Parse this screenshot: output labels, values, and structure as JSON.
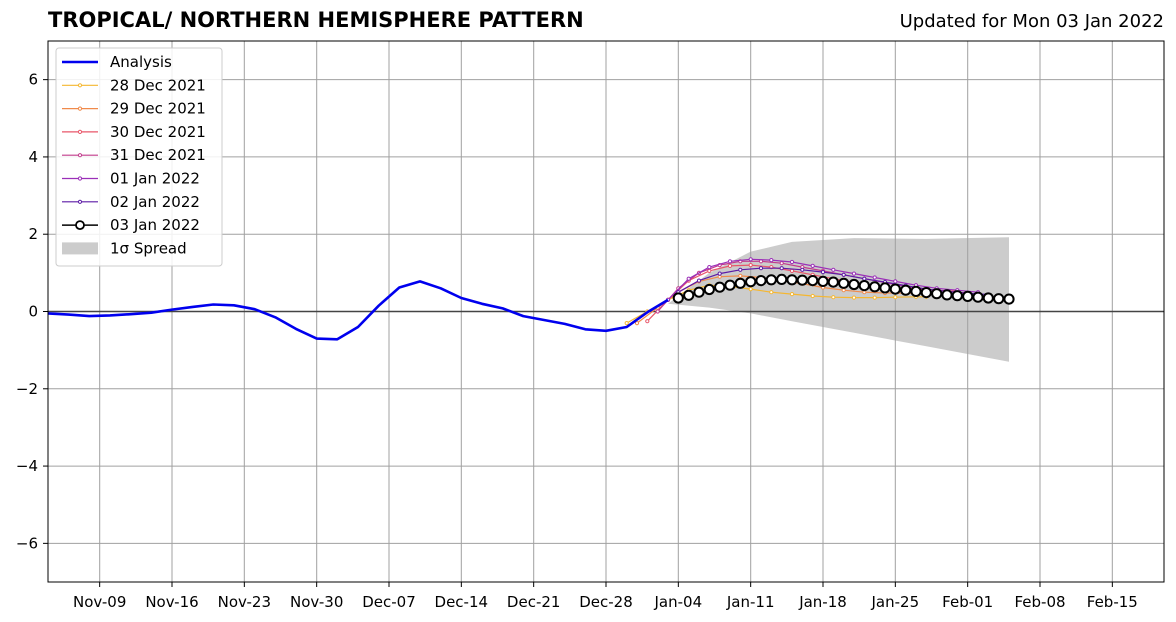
{
  "header": {
    "title": "TROPICAL/ NORTHERN HEMISPHERE PATTERN",
    "updated": "Updated for Mon 03 Jan 2022"
  },
  "chart_data": {
    "type": "line",
    "title": "TROPICAL/ NORTHERN HEMISPHERE PATTERN",
    "subtitle": "Updated for Mon 03 Jan 2022",
    "xlabel": "",
    "ylabel": "",
    "x_range": [
      "2021-11-04",
      "2022-02-20"
    ],
    "ylim": [
      -7,
      7
    ],
    "y_ticks": [
      -6,
      -4,
      -2,
      0,
      2,
      4,
      6
    ],
    "y_tick_labels": [
      "−6",
      "−4",
      "−2",
      "0",
      "2",
      "4",
      "6"
    ],
    "x_ticks": [
      "2021-11-09",
      "2021-11-16",
      "2021-11-23",
      "2021-11-30",
      "2021-12-07",
      "2021-12-14",
      "2021-12-21",
      "2021-12-28",
      "2022-01-04",
      "2022-01-11",
      "2022-01-18",
      "2022-01-25",
      "2022-02-01",
      "2022-02-08",
      "2022-02-15"
    ],
    "x_tick_labels": [
      "Nov-09",
      "Nov-16",
      "Nov-23",
      "Nov-30",
      "Dec-07",
      "Dec-14",
      "Dec-21",
      "Dec-28",
      "Jan-04",
      "Jan-11",
      "Jan-18",
      "Jan-25",
      "Feb-01",
      "Feb-08",
      "Feb-15"
    ],
    "grid": true,
    "legend_position": "top-left",
    "zero_line": 0,
    "analysis": {
      "name": "Analysis",
      "color": "#0000ee",
      "points": [
        [
          "2021-11-04",
          -0.05
        ],
        [
          "2021-11-06",
          -0.08
        ],
        [
          "2021-11-08",
          -0.12
        ],
        [
          "2021-11-10",
          -0.1
        ],
        [
          "2021-11-12",
          -0.07
        ],
        [
          "2021-11-14",
          -0.03
        ],
        [
          "2021-11-16",
          0.05
        ],
        [
          "2021-11-18",
          0.12
        ],
        [
          "2021-11-20",
          0.18
        ],
        [
          "2021-11-22",
          0.16
        ],
        [
          "2021-11-24",
          0.06
        ],
        [
          "2021-11-26",
          -0.15
        ],
        [
          "2021-11-28",
          -0.45
        ],
        [
          "2021-11-30",
          -0.7
        ],
        [
          "2021-12-02",
          -0.72
        ],
        [
          "2021-12-04",
          -0.4
        ],
        [
          "2021-12-06",
          0.15
        ],
        [
          "2021-12-08",
          0.62
        ],
        [
          "2021-12-10",
          0.78
        ],
        [
          "2021-12-12",
          0.6
        ],
        [
          "2021-12-14",
          0.35
        ],
        [
          "2021-12-16",
          0.2
        ],
        [
          "2021-12-18",
          0.08
        ],
        [
          "2021-12-20",
          -0.12
        ],
        [
          "2021-12-22",
          -0.22
        ],
        [
          "2021-12-24",
          -0.32
        ],
        [
          "2021-12-26",
          -0.46
        ],
        [
          "2021-12-28",
          -0.5
        ],
        [
          "2021-12-30",
          -0.4
        ],
        [
          "2022-01-01",
          -0.02
        ],
        [
          "2022-01-03",
          0.3
        ]
      ]
    },
    "spread": {
      "name": "1σ Spread",
      "color": "#cccccc",
      "upper": [
        [
          "2022-01-03",
          0.2
        ],
        [
          "2022-01-07",
          1.0
        ],
        [
          "2022-01-11",
          1.55
        ],
        [
          "2022-01-15",
          1.8
        ],
        [
          "2022-01-21",
          1.9
        ],
        [
          "2022-01-28",
          1.88
        ],
        [
          "2022-02-05",
          1.92
        ]
      ],
      "lower": [
        [
          "2022-01-03",
          0.2
        ],
        [
          "2022-01-07",
          0.1
        ],
        [
          "2022-01-11",
          -0.05
        ],
        [
          "2022-01-15",
          -0.25
        ],
        [
          "2022-01-21",
          -0.55
        ],
        [
          "2022-01-28",
          -0.9
        ],
        [
          "2022-02-05",
          -1.3
        ]
      ]
    },
    "series": [
      {
        "name": "28 Dec 2021",
        "color": "#f5b731",
        "marker": "dot",
        "values": [
          [
            "2021-12-30",
            -0.3
          ],
          [
            "2022-01-01",
            0.0
          ],
          [
            "2022-01-03",
            0.3
          ],
          [
            "2022-01-05",
            0.55
          ],
          [
            "2022-01-07",
            0.68
          ],
          [
            "2022-01-09",
            0.65
          ],
          [
            "2022-01-11",
            0.58
          ],
          [
            "2022-01-13",
            0.5
          ],
          [
            "2022-01-15",
            0.45
          ],
          [
            "2022-01-17",
            0.4
          ],
          [
            "2022-01-19",
            0.37
          ],
          [
            "2022-01-21",
            0.36
          ],
          [
            "2022-01-23",
            0.36
          ],
          [
            "2022-01-25",
            0.37
          ],
          [
            "2022-01-27",
            0.38
          ],
          [
            "2022-01-28",
            0.38
          ]
        ]
      },
      {
        "name": "29 Dec 2021",
        "color": "#f08a4b",
        "marker": "dot",
        "values": [
          [
            "2021-12-31",
            -0.3
          ],
          [
            "2022-01-02",
            0.1
          ],
          [
            "2022-01-04",
            0.5
          ],
          [
            "2022-01-06",
            0.78
          ],
          [
            "2022-01-08",
            0.9
          ],
          [
            "2022-01-10",
            0.92
          ],
          [
            "2022-01-12",
            0.88
          ],
          [
            "2022-01-14",
            0.8
          ],
          [
            "2022-01-16",
            0.72
          ],
          [
            "2022-01-18",
            0.62
          ],
          [
            "2022-01-20",
            0.55
          ],
          [
            "2022-01-22",
            0.5
          ],
          [
            "2022-01-24",
            0.48
          ],
          [
            "2022-01-26",
            0.47
          ],
          [
            "2022-01-28",
            0.48
          ],
          [
            "2022-01-29",
            0.48
          ]
        ]
      },
      {
        "name": "30 Dec 2021",
        "color": "#e8576a",
        "marker": "dot",
        "values": [
          [
            "2022-01-01",
            -0.25
          ],
          [
            "2022-01-03",
            0.3
          ],
          [
            "2022-01-05",
            0.8
          ],
          [
            "2022-01-07",
            1.05
          ],
          [
            "2022-01-09",
            1.18
          ],
          [
            "2022-01-11",
            1.2
          ],
          [
            "2022-01-13",
            1.15
          ],
          [
            "2022-01-15",
            1.05
          ],
          [
            "2022-01-17",
            0.95
          ],
          [
            "2022-01-19",
            0.85
          ],
          [
            "2022-01-21",
            0.75
          ],
          [
            "2022-01-23",
            0.68
          ],
          [
            "2022-01-25",
            0.62
          ],
          [
            "2022-01-27",
            0.58
          ],
          [
            "2022-01-29",
            0.55
          ],
          [
            "2022-01-31",
            0.52
          ]
        ]
      },
      {
        "name": "31 Dec 2021",
        "color": "#c23b8c",
        "marker": "dot",
        "values": [
          [
            "2022-01-02",
            0.0
          ],
          [
            "2022-01-04",
            0.6
          ],
          [
            "2022-01-06",
            1.0
          ],
          [
            "2022-01-08",
            1.2
          ],
          [
            "2022-01-10",
            1.3
          ],
          [
            "2022-01-12",
            1.3
          ],
          [
            "2022-01-14",
            1.25
          ],
          [
            "2022-01-16",
            1.15
          ],
          [
            "2022-01-18",
            1.05
          ],
          [
            "2022-01-20",
            0.95
          ],
          [
            "2022-01-22",
            0.85
          ],
          [
            "2022-01-24",
            0.75
          ],
          [
            "2022-01-26",
            0.65
          ],
          [
            "2022-01-28",
            0.58
          ],
          [
            "2022-01-30",
            0.52
          ],
          [
            "2022-02-01",
            0.48
          ]
        ]
      },
      {
        "name": "01 Jan 2022",
        "color": "#9b2fb8",
        "marker": "dot",
        "values": [
          [
            "2022-01-03",
            0.3
          ],
          [
            "2022-01-05",
            0.85
          ],
          [
            "2022-01-07",
            1.15
          ],
          [
            "2022-01-09",
            1.3
          ],
          [
            "2022-01-11",
            1.35
          ],
          [
            "2022-01-13",
            1.33
          ],
          [
            "2022-01-15",
            1.28
          ],
          [
            "2022-01-17",
            1.18
          ],
          [
            "2022-01-19",
            1.08
          ],
          [
            "2022-01-21",
            0.98
          ],
          [
            "2022-01-23",
            0.88
          ],
          [
            "2022-01-25",
            0.78
          ],
          [
            "2022-01-27",
            0.68
          ],
          [
            "2022-01-29",
            0.6
          ],
          [
            "2022-01-31",
            0.55
          ],
          [
            "2022-02-02",
            0.5
          ]
        ]
      },
      {
        "name": "02 Jan 2022",
        "color": "#5c1aa6",
        "marker": "dot",
        "values": [
          [
            "2022-01-04",
            0.5
          ],
          [
            "2022-01-06",
            0.8
          ],
          [
            "2022-01-08",
            0.98
          ],
          [
            "2022-01-10",
            1.08
          ],
          [
            "2022-01-12",
            1.12
          ],
          [
            "2022-01-14",
            1.12
          ],
          [
            "2022-01-16",
            1.08
          ],
          [
            "2022-01-18",
            1.02
          ],
          [
            "2022-01-20",
            0.95
          ],
          [
            "2022-01-22",
            0.85
          ],
          [
            "2022-01-24",
            0.76
          ],
          [
            "2022-01-26",
            0.67
          ],
          [
            "2022-01-28",
            0.58
          ],
          [
            "2022-01-30",
            0.52
          ],
          [
            "2022-02-01",
            0.47
          ],
          [
            "2022-02-03",
            0.44
          ]
        ]
      },
      {
        "name": "03 Jan 2022",
        "color": "#000000",
        "marker": "circle",
        "values": [
          [
            "2022-01-04",
            0.35
          ],
          [
            "2022-01-05",
            0.42
          ],
          [
            "2022-01-06",
            0.5
          ],
          [
            "2022-01-07",
            0.57
          ],
          [
            "2022-01-08",
            0.63
          ],
          [
            "2022-01-09",
            0.68
          ],
          [
            "2022-01-10",
            0.73
          ],
          [
            "2022-01-11",
            0.77
          ],
          [
            "2022-01-12",
            0.8
          ],
          [
            "2022-01-13",
            0.82
          ],
          [
            "2022-01-14",
            0.83
          ],
          [
            "2022-01-15",
            0.82
          ],
          [
            "2022-01-16",
            0.81
          ],
          [
            "2022-01-17",
            0.8
          ],
          [
            "2022-01-18",
            0.78
          ],
          [
            "2022-01-19",
            0.76
          ],
          [
            "2022-01-20",
            0.73
          ],
          [
            "2022-01-21",
            0.7
          ],
          [
            "2022-01-22",
            0.67
          ],
          [
            "2022-01-23",
            0.64
          ],
          [
            "2022-01-24",
            0.61
          ],
          [
            "2022-01-25",
            0.58
          ],
          [
            "2022-01-26",
            0.55
          ],
          [
            "2022-01-27",
            0.52
          ],
          [
            "2022-01-28",
            0.49
          ],
          [
            "2022-01-29",
            0.46
          ],
          [
            "2022-01-30",
            0.43
          ],
          [
            "2022-01-31",
            0.41
          ],
          [
            "2022-02-01",
            0.39
          ],
          [
            "2022-02-02",
            0.37
          ],
          [
            "2022-02-03",
            0.35
          ],
          [
            "2022-02-04",
            0.33
          ],
          [
            "2022-02-05",
            0.32
          ]
        ]
      }
    ]
  }
}
